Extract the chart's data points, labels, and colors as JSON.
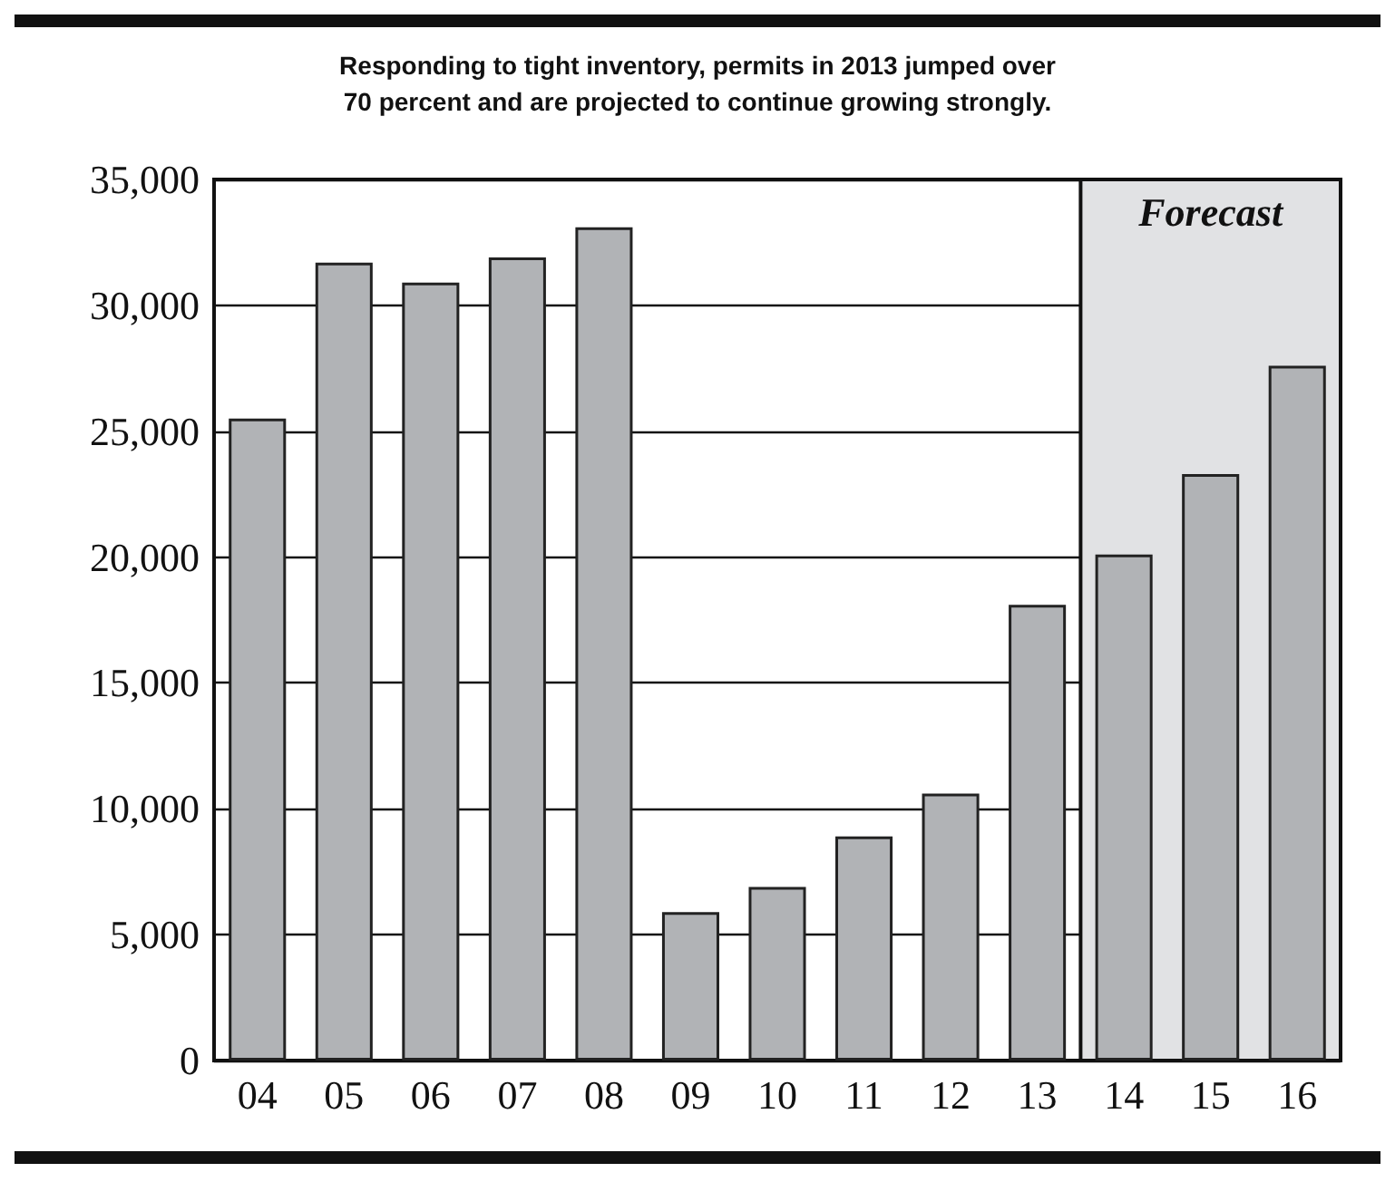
{
  "chart_data": {
    "type": "bar",
    "title": "Responding to tight inventory, permits in 2013 jumped over\n70 percent and are projected to continue growing strongly.",
    "categories": [
      "04",
      "05",
      "06",
      "07",
      "08",
      "09",
      "10",
      "11",
      "12",
      "13",
      "14",
      "15",
      "16"
    ],
    "values": [
      25500,
      31700,
      30900,
      31900,
      33100,
      5900,
      6900,
      8900,
      10600,
      18100,
      20100,
      23300,
      27600
    ],
    "color": "#b1b3b6",
    "ylim": [
      0,
      35000
    ],
    "yticks": [
      {
        "value": 0,
        "label": "0"
      },
      {
        "value": 5000,
        "label": "5,000"
      },
      {
        "value": 10000,
        "label": "10,000"
      },
      {
        "value": 15000,
        "label": "15,000"
      },
      {
        "value": 20000,
        "label": "20,000"
      },
      {
        "value": 25000,
        "label": "25,000"
      },
      {
        "value": 30000,
        "label": "30,000"
      },
      {
        "value": 35000,
        "label": "35,000"
      }
    ],
    "grid": "y",
    "bands": [
      {
        "axis": "x",
        "from": "14",
        "to": "16",
        "label": "Forecast",
        "color": "#e1e2e4"
      }
    ]
  }
}
